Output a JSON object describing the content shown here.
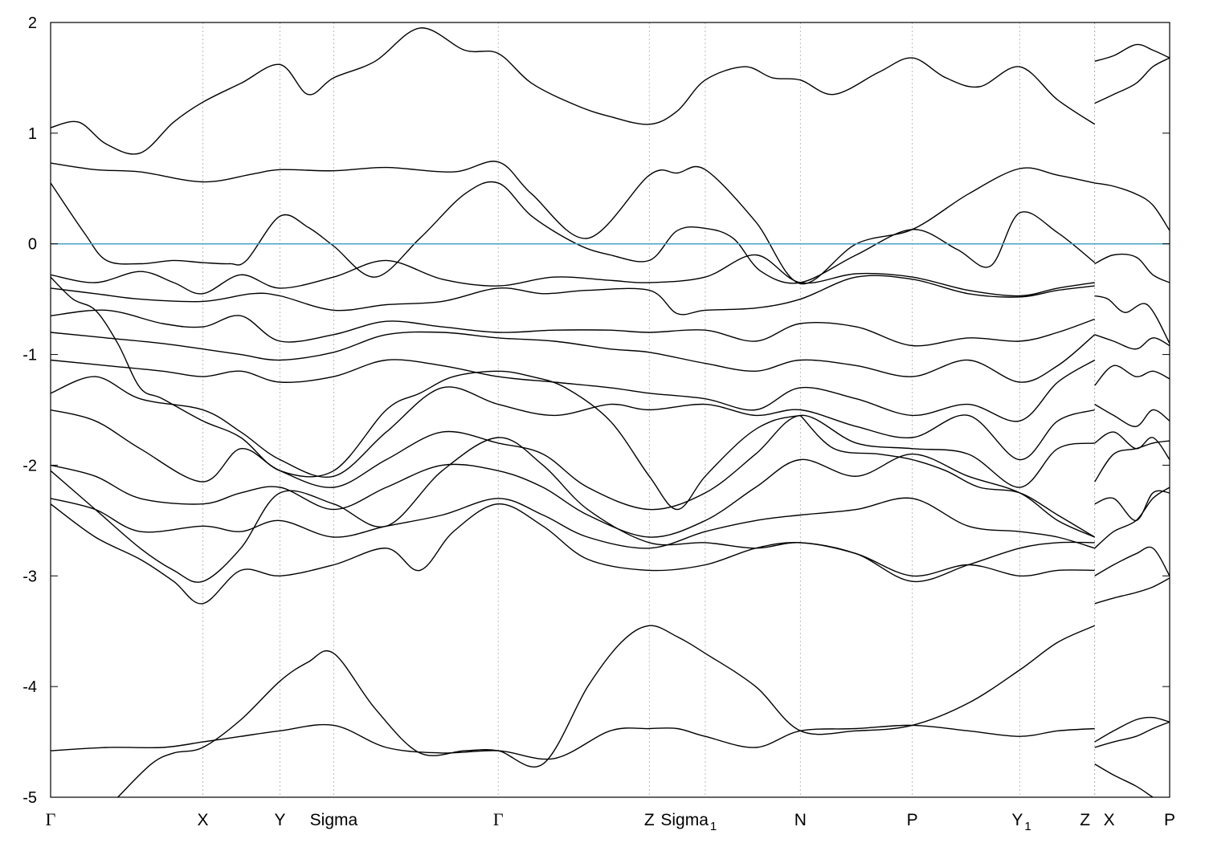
{
  "chart_data": {
    "type": "line",
    "title": "",
    "xlabel": "",
    "ylabel": "",
    "ylim": [
      -5,
      2
    ],
    "yticks": [
      "2",
      "1",
      "0",
      "-1",
      "-2",
      "-3",
      "-4",
      "-5"
    ],
    "ytick_values": [
      2,
      1,
      0,
      -1,
      -2,
      -3,
      -4,
      -5
    ],
    "xlim": [
      0,
      10
    ],
    "kpoints": [
      {
        "label": "Γ",
        "sub": "",
        "x": 0.0
      },
      {
        "label": "X",
        "sub": "",
        "x": 1.36
      },
      {
        "label": "Y",
        "sub": "",
        "x": 2.05
      },
      {
        "label": "Sigma",
        "sub": "",
        "x": 2.53
      },
      {
        "label": "Γ",
        "sub": "",
        "x": 4.0
      },
      {
        "label": "Z",
        "sub": "",
        "x": 5.35
      },
      {
        "label": "Sigma",
        "sub": "1",
        "x": 5.85
      },
      {
        "label": "N",
        "sub": "",
        "x": 6.7
      },
      {
        "label": "P",
        "sub": "",
        "x": 7.7
      },
      {
        "label": "Y",
        "sub": "1",
        "x": 8.66
      },
      {
        "label": "Z",
        "sub": "",
        "x": 9.33
      },
      {
        "label": "X",
        "sub": "",
        "x": 9.33
      },
      {
        "label": "P",
        "sub": "",
        "x": 10.0
      }
    ],
    "fermi_level": 0,
    "colors": {
      "bands": "#000000",
      "fermi": "#4aa3c4",
      "kpath_grid": "#aaaaaa"
    },
    "series": [
      {
        "x": [
          0.0,
          0.25,
          0.5,
          0.8,
          1.1,
          1.36,
          1.7,
          2.05,
          2.3,
          2.53,
          2.9,
          3.3,
          3.7,
          4.0,
          4.3,
          4.7,
          5.0,
          5.35,
          5.6,
          5.85,
          6.2,
          6.45,
          6.7,
          7.0,
          7.4,
          7.7,
          8.0,
          8.3,
          8.66,
          9.0,
          9.33
        ],
        "y": [
          1.05,
          1.1,
          0.9,
          0.82,
          1.1,
          1.28,
          1.45,
          1.62,
          1.35,
          1.5,
          1.65,
          1.95,
          1.75,
          1.72,
          1.45,
          1.25,
          1.15,
          1.08,
          1.2,
          1.48,
          1.6,
          1.5,
          1.48,
          1.35,
          1.55,
          1.68,
          1.5,
          1.42,
          1.6,
          1.3,
          1.08
        ]
      },
      {
        "x": [
          0.0,
          0.4,
          0.8,
          1.36,
          1.8,
          2.05,
          2.53,
          3.0,
          3.6,
          4.0,
          4.3,
          4.8,
          5.35,
          5.6,
          5.85,
          6.3,
          6.7,
          7.2,
          7.7,
          8.2,
          8.66,
          9.0,
          9.33
        ],
        "y": [
          0.73,
          0.67,
          0.65,
          0.56,
          0.63,
          0.67,
          0.66,
          0.69,
          0.65,
          0.74,
          0.45,
          0.05,
          0.62,
          0.64,
          0.67,
          0.2,
          -0.36,
          0.0,
          0.13,
          0.45,
          0.68,
          0.62,
          0.55
        ]
      },
      {
        "x": [
          0.0,
          0.3,
          0.5,
          0.8,
          1.1,
          1.36,
          1.6,
          1.75,
          2.05,
          2.3,
          2.53,
          2.9,
          3.3,
          3.7,
          4.0,
          4.3,
          4.7,
          5.0,
          5.35,
          5.6,
          5.85,
          6.1,
          6.35,
          6.7,
          7.2,
          7.7,
          8.1,
          8.4,
          8.66,
          9.0,
          9.33
        ],
        "y": [
          0.55,
          0.1,
          -0.15,
          -0.18,
          -0.15,
          -0.17,
          -0.18,
          -0.15,
          0.25,
          0.15,
          -0.02,
          -0.3,
          0.05,
          0.45,
          0.55,
          0.25,
          0.0,
          -0.1,
          -0.15,
          0.12,
          0.14,
          0.05,
          -0.25,
          -0.35,
          -0.1,
          0.13,
          -0.05,
          -0.2,
          0.28,
          0.1,
          -0.17
        ]
      },
      {
        "x": [
          0.0,
          0.4,
          0.8,
          1.1,
          1.36,
          1.7,
          2.05,
          2.53,
          3.0,
          3.5,
          4.0,
          4.5,
          5.0,
          5.35,
          5.85,
          6.3,
          6.7,
          7.2,
          7.7,
          8.2,
          8.66,
          9.0,
          9.33
        ],
        "y": [
          -0.28,
          -0.35,
          -0.25,
          -0.35,
          -0.45,
          -0.28,
          -0.4,
          -0.3,
          -0.15,
          -0.32,
          -0.38,
          -0.3,
          -0.33,
          -0.35,
          -0.3,
          -0.1,
          -0.35,
          -0.27,
          -0.3,
          -0.42,
          -0.47,
          -0.4,
          -0.35
        ]
      },
      {
        "x": [
          0.0,
          0.4,
          0.8,
          1.36,
          1.8,
          2.05,
          2.53,
          3.0,
          3.5,
          4.0,
          4.4,
          4.8,
          5.35,
          5.6,
          5.85,
          6.3,
          6.7,
          7.2,
          7.7,
          8.2,
          8.66,
          9.0,
          9.33
        ],
        "y": [
          -0.4,
          -0.45,
          -0.5,
          -0.52,
          -0.45,
          -0.47,
          -0.6,
          -0.55,
          -0.52,
          -0.4,
          -0.45,
          -0.42,
          -0.42,
          -0.63,
          -0.6,
          -0.58,
          -0.5,
          -0.3,
          -0.32,
          -0.45,
          -0.48,
          -0.42,
          -0.38
        ]
      },
      {
        "x": [
          0.0,
          0.5,
          1.0,
          1.36,
          1.7,
          2.05,
          2.53,
          3.0,
          3.5,
          4.0,
          4.5,
          5.0,
          5.35,
          5.85,
          6.3,
          6.7,
          7.2,
          7.7,
          8.2,
          8.66,
          9.0,
          9.33
        ],
        "y": [
          -0.65,
          -0.6,
          -0.72,
          -0.75,
          -0.65,
          -0.88,
          -0.82,
          -0.7,
          -0.75,
          -0.8,
          -0.78,
          -0.78,
          -0.8,
          -0.78,
          -0.88,
          -0.72,
          -0.75,
          -0.92,
          -0.85,
          -0.88,
          -0.8,
          -0.68
        ]
      },
      {
        "x": [
          0.0,
          0.5,
          1.0,
          1.36,
          1.7,
          2.05,
          2.53,
          3.0,
          3.5,
          4.0,
          4.5,
          5.0,
          5.35,
          5.85,
          6.3,
          6.7,
          7.2,
          7.7,
          8.2,
          8.66,
          9.0,
          9.33
        ],
        "y": [
          -0.8,
          -0.85,
          -0.9,
          -0.95,
          -1.0,
          -1.05,
          -0.98,
          -0.82,
          -0.8,
          -0.85,
          -0.88,
          -0.95,
          -0.98,
          -1.08,
          -1.15,
          -1.05,
          -1.1,
          -1.2,
          -1.05,
          -1.25,
          -1.1,
          -0.82
        ]
      },
      {
        "x": [
          0.0,
          0.5,
          1.0,
          1.36,
          1.7,
          2.05,
          2.53,
          3.0,
          3.5,
          4.0,
          4.5,
          5.0,
          5.35,
          5.85,
          6.3,
          6.7,
          7.2,
          7.7,
          8.2,
          8.66,
          9.0,
          9.33
        ],
        "y": [
          -1.05,
          -1.1,
          -1.15,
          -1.2,
          -1.15,
          -1.25,
          -1.2,
          -1.05,
          -1.1,
          -1.2,
          -1.25,
          -1.3,
          -1.35,
          -1.4,
          -1.5,
          -1.3,
          -1.4,
          -1.55,
          -1.45,
          -1.6,
          -1.25,
          -1.05
        ]
      },
      {
        "x": [
          0.0,
          0.4,
          0.8,
          1.36,
          1.7,
          2.05,
          2.53,
          3.0,
          3.5,
          4.0,
          4.5,
          5.0,
          5.35,
          5.85,
          6.3,
          6.7,
          7.2,
          7.7,
          8.2,
          8.66,
          9.0,
          9.33
        ],
        "y": [
          -1.35,
          -1.2,
          -1.4,
          -1.5,
          -1.7,
          -1.95,
          -2.1,
          -1.7,
          -1.3,
          -1.45,
          -1.55,
          -1.45,
          -1.5,
          -1.45,
          -1.55,
          -1.5,
          -1.65,
          -1.75,
          -1.55,
          -1.95,
          -1.6,
          -1.5
        ]
      },
      {
        "x": [
          0.0,
          0.4,
          0.8,
          1.36,
          1.7,
          2.05,
          2.53,
          3.0,
          3.5,
          4.0,
          4.4,
          4.8,
          5.35,
          5.85,
          6.3,
          6.7,
          7.2,
          7.7,
          8.2,
          8.66,
          9.0,
          9.33
        ],
        "y": [
          -1.5,
          -1.6,
          -1.85,
          -2.15,
          -1.85,
          -2.05,
          -2.2,
          -1.95,
          -1.7,
          -1.8,
          -1.9,
          -2.2,
          -2.4,
          -2.25,
          -1.9,
          -1.55,
          -1.8,
          -1.85,
          -1.9,
          -2.2,
          -1.85,
          -1.8
        ]
      },
      {
        "x": [
          0.0,
          0.4,
          0.8,
          1.36,
          1.7,
          2.05,
          2.53,
          3.0,
          3.5,
          4.0,
          4.4,
          4.8,
          5.35,
          5.85,
          6.3,
          6.7,
          7.2,
          7.7,
          8.2,
          8.66,
          9.0,
          9.33
        ],
        "y": [
          -2.0,
          -2.1,
          -2.3,
          -2.35,
          -2.25,
          -2.2,
          -2.4,
          -2.2,
          -2.0,
          -2.05,
          -2.2,
          -2.45,
          -2.65,
          -2.5,
          -2.2,
          -1.95,
          -2.1,
          -1.9,
          -2.1,
          -2.25,
          -2.5,
          -2.65
        ]
      },
      {
        "x": [
          0.0,
          0.4,
          0.8,
          1.36,
          1.7,
          2.05,
          2.53,
          3.0,
          3.5,
          4.0,
          4.4,
          4.8,
          5.35,
          5.85,
          6.3,
          6.7,
          7.2,
          7.7,
          8.2,
          8.66,
          9.0,
          9.33
        ],
        "y": [
          -2.3,
          -2.4,
          -2.6,
          -2.55,
          -2.6,
          -2.5,
          -2.65,
          -2.55,
          -2.45,
          -2.3,
          -2.45,
          -2.65,
          -2.75,
          -2.6,
          -2.5,
          -2.45,
          -2.4,
          -2.3,
          -2.55,
          -2.6,
          -2.65,
          -2.75
        ]
      },
      {
        "x": [
          0.0,
          0.4,
          0.8,
          1.1,
          1.36,
          1.7,
          2.05,
          2.53,
          3.0,
          3.3,
          3.6,
          4.0,
          4.4,
          4.8,
          5.35,
          5.85,
          6.3,
          6.7,
          7.2,
          7.7,
          8.2,
          8.66,
          9.0,
          9.33
        ],
        "y": [
          -2.35,
          -2.65,
          -2.85,
          -3.05,
          -3.25,
          -2.95,
          -3.0,
          -2.9,
          -2.75,
          -2.95,
          -2.6,
          -2.35,
          -2.55,
          -2.85,
          -2.95,
          -2.9,
          -2.75,
          -2.7,
          -2.8,
          -3.0,
          -2.9,
          -3.0,
          -2.95,
          -2.95
        ]
      },
      {
        "x": [
          0.0,
          0.4,
          0.8,
          1.1,
          1.36,
          1.7,
          2.05,
          2.53,
          3.0,
          3.5,
          4.0,
          4.4,
          4.8,
          5.35,
          5.85,
          6.3,
          6.7,
          7.2,
          7.7,
          8.2,
          8.66,
          9.0,
          9.33
        ],
        "y": [
          -2.05,
          -2.4,
          -2.75,
          -2.95,
          -3.05,
          -2.75,
          -2.25,
          -2.35,
          -2.55,
          -2.05,
          -1.75,
          -2.0,
          -2.4,
          -2.7,
          -2.7,
          -2.75,
          -2.7,
          -2.8,
          -3.05,
          -2.9,
          -2.75,
          -2.7,
          -2.7
        ]
      },
      {
        "x": [
          0.0,
          0.5,
          1.0,
          1.36,
          1.7,
          2.05,
          2.53,
          3.0,
          3.5,
          4.0,
          4.5,
          5.0,
          5.35,
          5.6,
          5.85,
          6.3,
          6.7,
          7.2,
          7.7,
          8.2,
          8.66,
          9.0,
          9.33
        ],
        "y": [
          -4.58,
          -4.55,
          -4.55,
          -4.5,
          -4.45,
          -4.4,
          -4.35,
          -4.55,
          -4.6,
          -4.58,
          -4.65,
          -4.4,
          -4.38,
          -4.38,
          -4.45,
          -4.55,
          -4.4,
          -4.38,
          -4.35,
          -4.4,
          -4.45,
          -4.4,
          -4.38
        ]
      },
      {
        "x": [
          0.6,
          0.9,
          1.1,
          1.36,
          1.7,
          2.05,
          2.3,
          2.53,
          2.9,
          3.3,
          3.7,
          4.0,
          4.4,
          4.8,
          5.1,
          5.35,
          5.6,
          5.85,
          6.3,
          6.7,
          7.2,
          7.7,
          8.2,
          8.66,
          9.0,
          9.33
        ],
        "y": [
          -5.0,
          -4.7,
          -4.6,
          -4.55,
          -4.3,
          -3.95,
          -3.78,
          -3.7,
          -4.2,
          -4.6,
          -4.58,
          -4.58,
          -4.7,
          -4.0,
          -3.6,
          -3.45,
          -3.55,
          -3.7,
          -4.0,
          -4.4,
          -4.4,
          -4.35,
          -4.15,
          -3.85,
          -3.6,
          -3.45
        ]
      },
      {
        "x": [
          0.0,
          0.2,
          0.4,
          0.6,
          0.8,
          1.0,
          1.36,
          1.7,
          2.05,
          2.53,
          3.0,
          3.3,
          3.6,
          4.0,
          4.3,
          4.6,
          5.0,
          5.35,
          5.6,
          5.85,
          6.2,
          6.45,
          6.7
        ],
        "y": [
          -0.3,
          -0.5,
          -0.6,
          -0.9,
          -1.3,
          -1.4,
          -1.6,
          -1.75,
          -2.05,
          -2.05,
          -1.5,
          -1.35,
          -1.2,
          -1.15,
          -1.2,
          -1.3,
          -1.6,
          -2.1,
          -2.4,
          -2.1,
          -1.75,
          -1.6,
          -1.55
        ]
      },
      {
        "x": [
          6.7,
          7.0,
          7.4,
          7.7,
          8.0,
          8.3,
          8.66,
          9.0,
          9.33
        ],
        "y": [
          -1.55,
          -1.85,
          -1.9,
          -1.95,
          -2.05,
          -2.2,
          -2.25,
          -2.45,
          -2.65
        ]
      },
      {
        "x": [
          9.33,
          9.5,
          9.7,
          9.85,
          10.0
        ],
        "y": [
          0.55,
          0.52,
          0.45,
          0.35,
          0.12
        ]
      },
      {
        "x": [
          9.33,
          9.5,
          9.7,
          9.85,
          10.0
        ],
        "y": [
          -0.18,
          -0.1,
          -0.12,
          -0.28,
          -0.35
        ]
      },
      {
        "x": [
          9.33,
          9.45,
          9.6,
          9.8,
          10.0
        ],
        "y": [
          -0.47,
          -0.5,
          -0.62,
          -0.55,
          -0.9
        ]
      },
      {
        "x": [
          9.33,
          9.5,
          9.7,
          9.85,
          10.0
        ],
        "y": [
          -0.82,
          -0.88,
          -0.95,
          -0.85,
          -0.92
        ]
      },
      {
        "x": [
          9.33,
          9.5,
          9.7,
          9.85,
          10.0
        ],
        "y": [
          -1.28,
          -1.1,
          -1.2,
          -1.15,
          -1.22
        ]
      },
      {
        "x": [
          9.33,
          9.5,
          9.7,
          9.85,
          10.0
        ],
        "y": [
          -1.45,
          -1.55,
          -1.65,
          -1.5,
          -1.6
        ]
      },
      {
        "x": [
          9.33,
          9.5,
          9.7,
          9.85,
          10.0
        ],
        "y": [
          -1.8,
          -1.7,
          -1.85,
          -1.75,
          -1.95
        ]
      },
      {
        "x": [
          9.33,
          9.5,
          9.7,
          9.85,
          10.0
        ],
        "y": [
          -2.15,
          -1.9,
          -1.85,
          -1.8,
          -1.78
        ]
      },
      {
        "x": [
          9.33,
          9.5,
          9.7,
          9.85,
          10.0
        ],
        "y": [
          -2.35,
          -2.3,
          -2.5,
          -2.25,
          -2.25
        ]
      },
      {
        "x": [
          9.33,
          9.5,
          9.7,
          9.85,
          10.0
        ],
        "y": [
          -2.75,
          -2.6,
          -2.5,
          -2.3,
          -2.2
        ]
      },
      {
        "x": [
          9.33,
          9.5,
          9.7,
          9.85,
          10.0
        ],
        "y": [
          -3.25,
          -3.2,
          -3.15,
          -3.1,
          -3.02
        ]
      },
      {
        "x": [
          9.33,
          9.5,
          9.7,
          9.85,
          10.0
        ],
        "y": [
          -3.0,
          -2.9,
          -2.8,
          -2.75,
          -3.0
        ]
      },
      {
        "x": [
          9.33,
          9.5,
          9.7,
          9.85,
          10.0
        ],
        "y": [
          -4.5,
          -4.4,
          -4.3,
          -4.28,
          -4.32
        ]
      },
      {
        "x": [
          9.33,
          9.5,
          9.7,
          9.85,
          10.0
        ],
        "y": [
          -4.55,
          -4.5,
          -4.45,
          -4.38,
          -4.32
        ]
      },
      {
        "x": [
          9.33,
          9.5,
          9.7,
          9.85,
          10.0
        ],
        "y": [
          -4.7,
          -4.8,
          -4.9,
          -5.0,
          -5.1
        ]
      },
      {
        "x": [
          9.33,
          9.5,
          9.7,
          9.85,
          10.0
        ],
        "y": [
          1.65,
          1.7,
          1.8,
          1.75,
          1.68
        ]
      },
      {
        "x": [
          9.33,
          9.5,
          9.7,
          9.85,
          10.0
        ],
        "y": [
          1.27,
          1.35,
          1.45,
          1.6,
          1.68
        ]
      }
    ]
  }
}
